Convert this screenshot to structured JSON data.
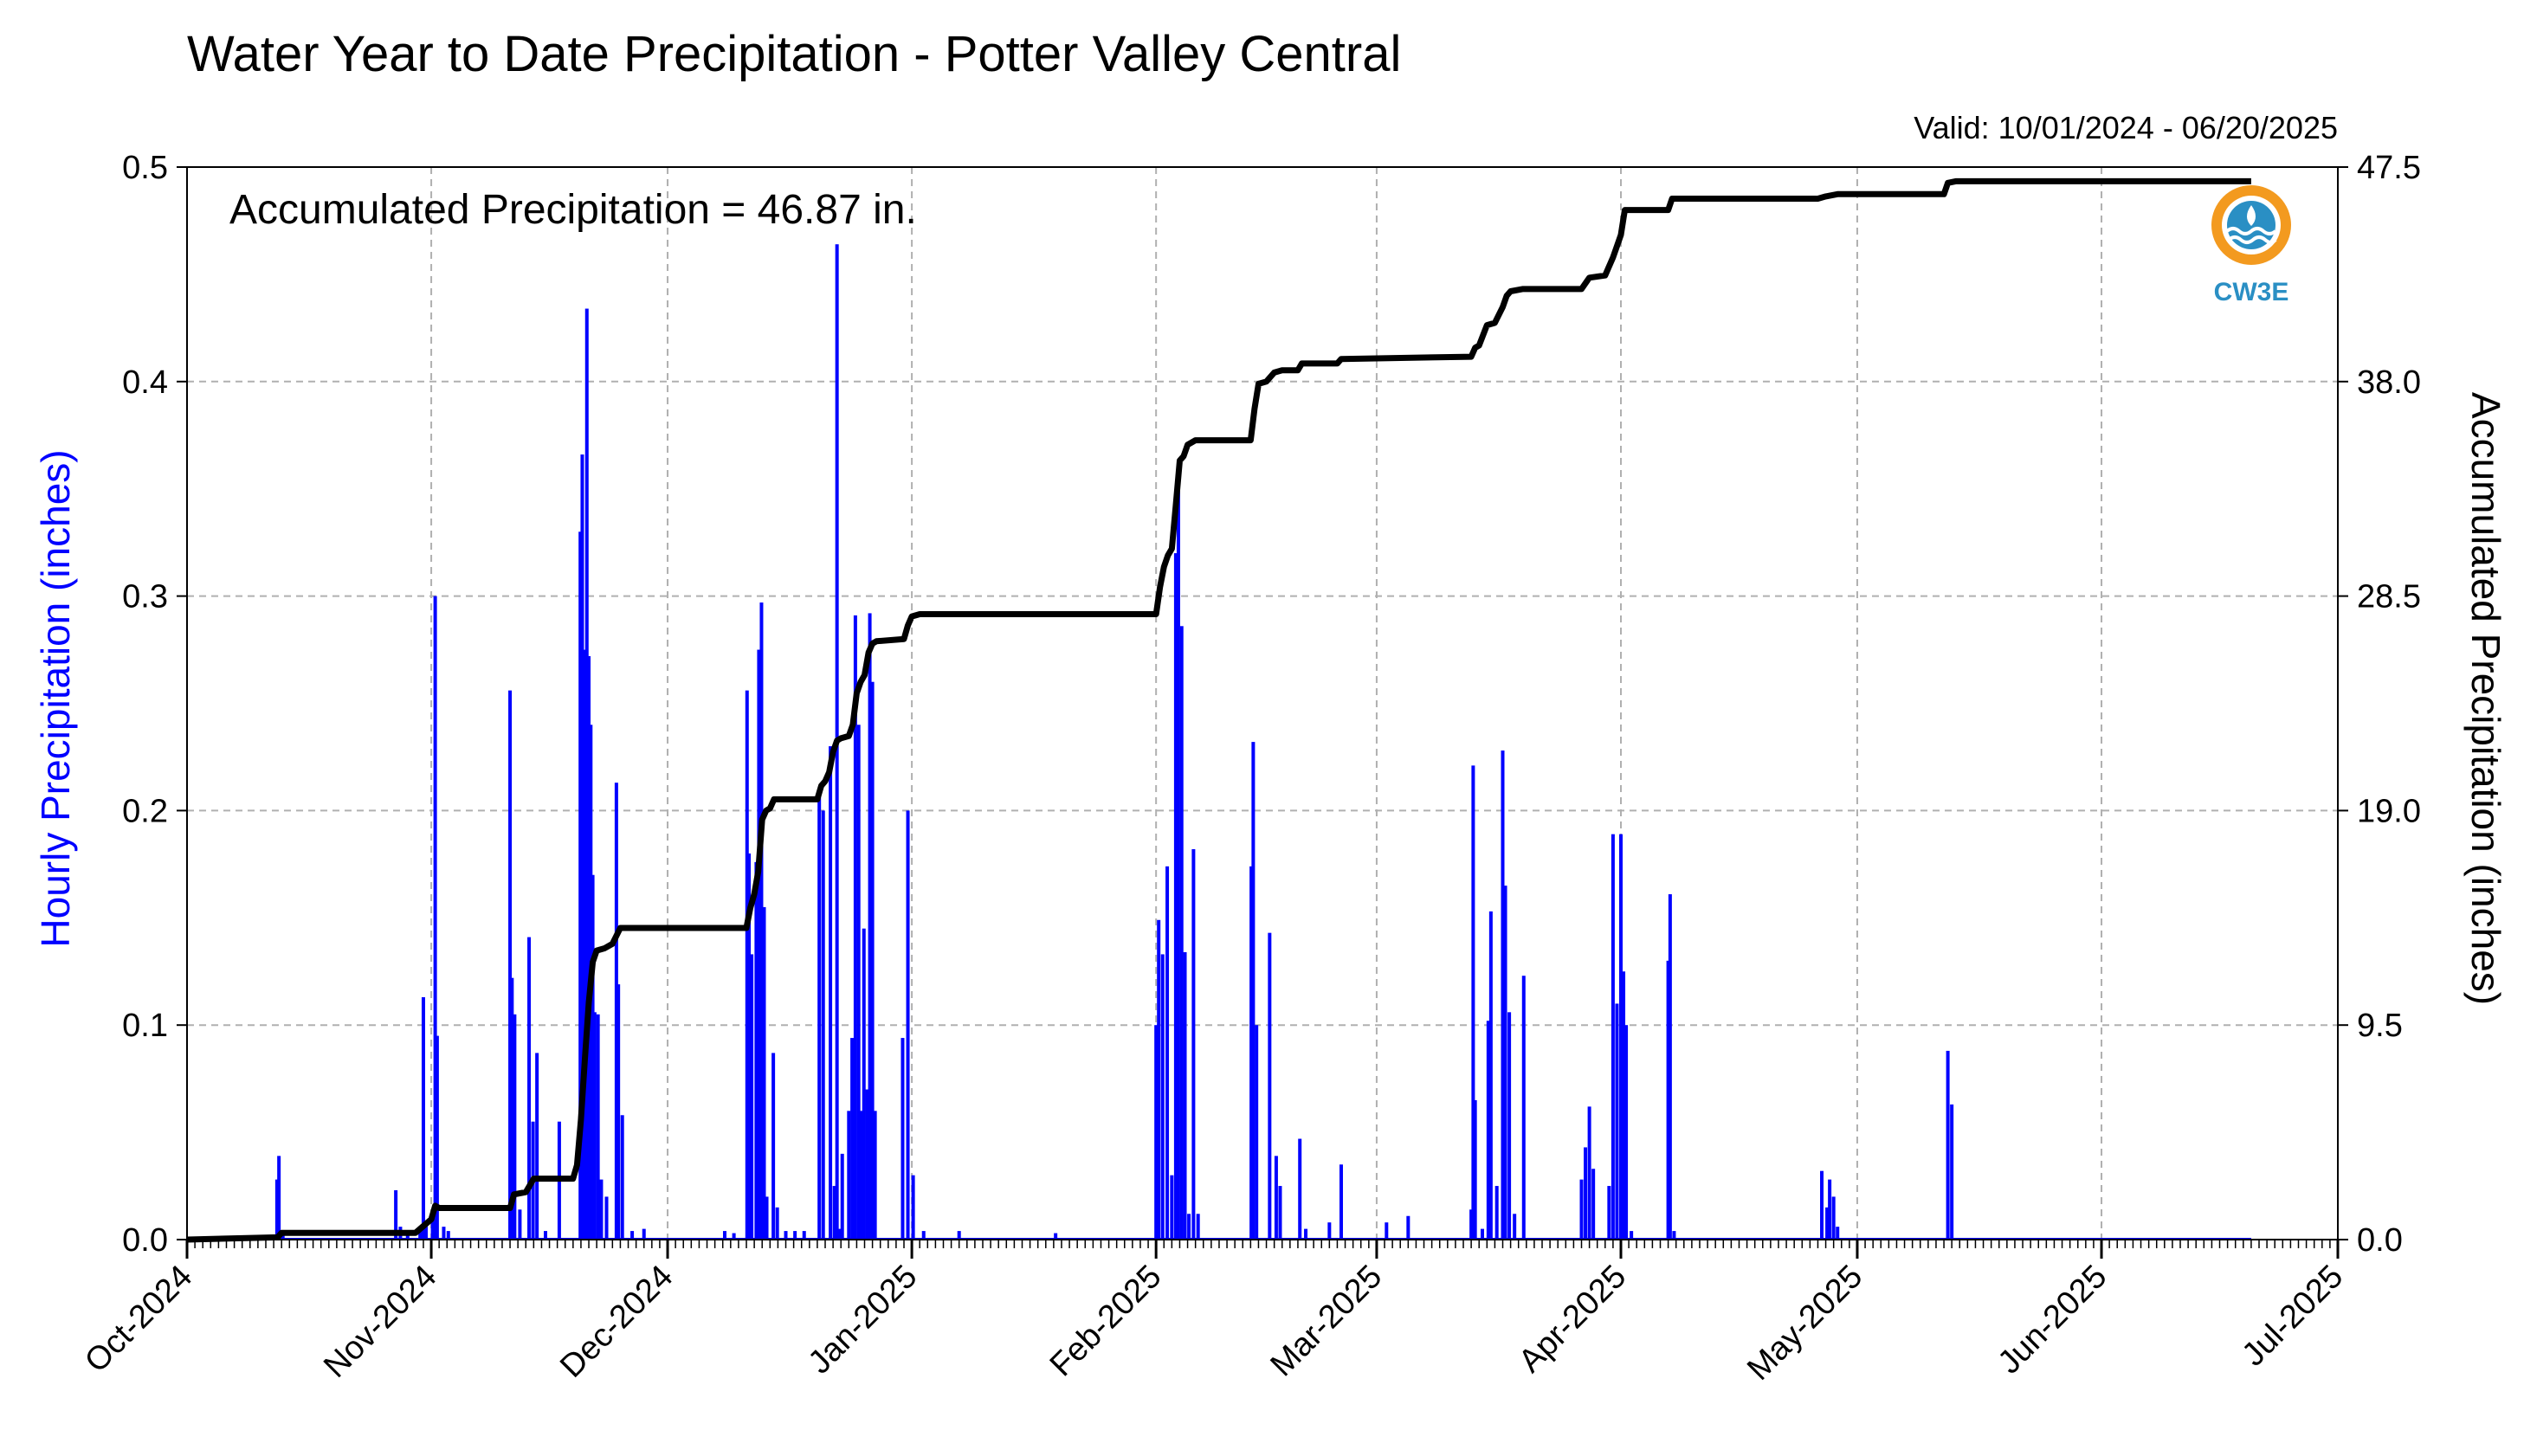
{
  "chart_data": {
    "type": "bar",
    "title": "Water Year to Date Precipitation - Potter Valley Central",
    "valid_range": "Valid: 10/01/2024 - 06/20/2025",
    "annotation": "Accumulated Precipitation = 46.87 in.",
    "ylabel_left": "Hourly Precipitation (inches)",
    "ylabel_right": "Accumulated Precipitation (inches)",
    "ylim_left": [
      0,
      0.5
    ],
    "ylim_right": [
      0,
      47.5
    ],
    "yticks_left": [
      "0.0",
      "0.1",
      "0.2",
      "0.3",
      "0.4",
      "0.5"
    ],
    "yticks_right": [
      "0.0",
      "9.5",
      "19.0",
      "28.5",
      "38.0",
      "47.5"
    ],
    "x_range": [
      "2024-10-01",
      "2025-07-01"
    ],
    "x_ticks": [
      {
        "date": "2024-10-01",
        "label": "Oct-2024"
      },
      {
        "date": "2024-11-01",
        "label": "Nov-2024"
      },
      {
        "date": "2024-12-01",
        "label": "Dec-2024"
      },
      {
        "date": "2025-01-01",
        "label": "Jan-2025"
      },
      {
        "date": "2025-02-01",
        "label": "Feb-2025"
      },
      {
        "date": "2025-03-01",
        "label": "Mar-2025"
      },
      {
        "date": "2025-04-01",
        "label": "Apr-2025"
      },
      {
        "date": "2025-05-01",
        "label": "May-2025"
      },
      {
        "date": "2025-06-01",
        "label": "Jun-2025"
      },
      {
        "date": "2025-07-01",
        "label": "Jul-2025"
      }
    ],
    "grid": true,
    "colors": {
      "hourly": "#0000ff",
      "accumulated": "#000000",
      "grid": "#b0b0b0"
    },
    "series": [
      {
        "name": "Hourly Precipitation (inches)",
        "axis": "left",
        "type": "bar",
        "points": [
          [
            "2024-10-12T10:00",
            0.028
          ],
          [
            "2024-10-12T16:00",
            0.039
          ],
          [
            "2024-10-13T04:00",
            0.004
          ],
          [
            "2024-10-27T12:00",
            0.023
          ],
          [
            "2024-10-28T02:00",
            0.006
          ],
          [
            "2024-10-29T00:00",
            0.004
          ],
          [
            "2024-10-30T14:00",
            0.004
          ],
          [
            "2024-10-31T00:00",
            0.113
          ],
          [
            "2024-10-31T08:00",
            0.008
          ],
          [
            "2024-11-01T04:00",
            0.012
          ],
          [
            "2024-11-01T12:00",
            0.3
          ],
          [
            "2024-11-01T18:00",
            0.095
          ],
          [
            "2024-11-02T14:00",
            0.006
          ],
          [
            "2024-11-03T04:00",
            0.004
          ],
          [
            "2024-11-11T00:00",
            0.256
          ],
          [
            "2024-11-11T06:00",
            0.122
          ],
          [
            "2024-11-11T14:00",
            0.105
          ],
          [
            "2024-11-12T06:00",
            0.014
          ],
          [
            "2024-11-13T10:00",
            0.141
          ],
          [
            "2024-11-13T22:00",
            0.055
          ],
          [
            "2024-11-14T10:00",
            0.087
          ],
          [
            "2024-11-15T12:00",
            0.004
          ],
          [
            "2024-11-17T06:00",
            0.055
          ],
          [
            "2024-11-19T12:00",
            0.0
          ],
          [
            "2024-11-19T22:00",
            0.33
          ],
          [
            "2024-11-20T04:00",
            0.366
          ],
          [
            "2024-11-20T12:00",
            0.275
          ],
          [
            "2024-11-20T18:00",
            0.434
          ],
          [
            "2024-11-21T00:00",
            0.272
          ],
          [
            "2024-11-21T06:00",
            0.24
          ],
          [
            "2024-11-21T12:00",
            0.17
          ],
          [
            "2024-11-21T18:00",
            0.106
          ],
          [
            "2024-11-22T04:00",
            0.105
          ],
          [
            "2024-11-22T14:00",
            0.028
          ],
          [
            "2024-11-23T06:00",
            0.02
          ],
          [
            "2024-11-24T12:00",
            0.213
          ],
          [
            "2024-11-24T18:00",
            0.119
          ],
          [
            "2024-11-25T06:00",
            0.058
          ],
          [
            "2024-11-26T12:00",
            0.004
          ],
          [
            "2024-11-28T00:00",
            0.005
          ],
          [
            "2024-12-08T06:00",
            0.004
          ],
          [
            "2024-12-09T10:00",
            0.003
          ],
          [
            "2024-12-11T02:00",
            0.256
          ],
          [
            "2024-12-11T08:00",
            0.18
          ],
          [
            "2024-12-11T16:00",
            0.133
          ],
          [
            "2024-12-12T06:00",
            0.176
          ],
          [
            "2024-12-12T14:00",
            0.275
          ],
          [
            "2024-12-12T22:00",
            0.297
          ],
          [
            "2024-12-13T06:00",
            0.155
          ],
          [
            "2024-12-13T14:00",
            0.02
          ],
          [
            "2024-12-14T10:00",
            0.087
          ],
          [
            "2024-12-14T22:00",
            0.015
          ],
          [
            "2024-12-16T00:00",
            0.004
          ],
          [
            "2024-12-17T04:00",
            0.004
          ],
          [
            "2024-12-18T08:00",
            0.004
          ],
          [
            "2024-12-20T06:00",
            0.208
          ],
          [
            "2024-12-20T18:00",
            0.2
          ],
          [
            "2024-12-21T16:00",
            0.23
          ],
          [
            "2024-12-22T04:00",
            0.025
          ],
          [
            "2024-12-22T12:00",
            0.464
          ],
          [
            "2024-12-22T20:00",
            0.005
          ],
          [
            "2024-12-23T04:00",
            0.04
          ],
          [
            "2024-12-24T00:00",
            0.06
          ],
          [
            "2024-12-24T10:00",
            0.094
          ],
          [
            "2024-12-24T20:00",
            0.291
          ],
          [
            "2024-12-25T06:00",
            0.24
          ],
          [
            "2024-12-25T14:00",
            0.06
          ],
          [
            "2024-12-25T22:00",
            0.145
          ],
          [
            "2024-12-26T08:00",
            0.07
          ],
          [
            "2024-12-26T16:00",
            0.292
          ],
          [
            "2024-12-27T00:00",
            0.26
          ],
          [
            "2024-12-27T08:00",
            0.06
          ],
          [
            "2024-12-30T20:00",
            0.094
          ],
          [
            "2024-12-31T12:00",
            0.2
          ],
          [
            "2025-01-01T04:00",
            0.03
          ],
          [
            "2025-01-02T12:00",
            0.004
          ],
          [
            "2025-01-07T00:00",
            0.004
          ],
          [
            "2025-01-19T06:00",
            0.003
          ],
          [
            "2025-02-01T00:00",
            0.1
          ],
          [
            "2025-02-01T08:00",
            0.149
          ],
          [
            "2025-02-01T20:00",
            0.133
          ],
          [
            "2025-02-02T10:00",
            0.174
          ],
          [
            "2025-02-03T00:00",
            0.03
          ],
          [
            "2025-02-03T12:00",
            0.32
          ],
          [
            "2025-02-03T20:00",
            0.35
          ],
          [
            "2025-02-04T06:00",
            0.286
          ],
          [
            "2025-02-04T16:00",
            0.134
          ],
          [
            "2025-02-05T04:00",
            0.012
          ],
          [
            "2025-02-05T18:00",
            0.182
          ],
          [
            "2025-02-06T08:00",
            0.012
          ],
          [
            "2025-02-13T02:00",
            0.174
          ],
          [
            "2025-02-13T08:00",
            0.232
          ],
          [
            "2025-02-13T18:00",
            0.1
          ],
          [
            "2025-02-15T10:00",
            0.143
          ],
          [
            "2025-02-16T06:00",
            0.039
          ],
          [
            "2025-02-16T18:00",
            0.025
          ],
          [
            "2025-02-19T06:00",
            0.047
          ],
          [
            "2025-02-20T00:00",
            0.005
          ],
          [
            "2025-02-23T00:00",
            0.008
          ],
          [
            "2025-02-24T12:00",
            0.035
          ],
          [
            "2025-03-02T06:00",
            0.008
          ],
          [
            "2025-03-05T00:00",
            0.011
          ],
          [
            "2025-03-13T00:00",
            0.014
          ],
          [
            "2025-03-13T06:00",
            0.221
          ],
          [
            "2025-03-13T12:00",
            0.065
          ],
          [
            "2025-03-14T10:00",
            0.005
          ],
          [
            "2025-03-15T04:00",
            0.102
          ],
          [
            "2025-03-15T12:00",
            0.153
          ],
          [
            "2025-03-16T06:00",
            0.025
          ],
          [
            "2025-03-17T00:00",
            0.228
          ],
          [
            "2025-03-17T08:00",
            0.165
          ],
          [
            "2025-03-17T20:00",
            0.106
          ],
          [
            "2025-03-18T12:00",
            0.012
          ],
          [
            "2025-03-19T16:00",
            0.123
          ],
          [
            "2025-03-27T00:00",
            0.028
          ],
          [
            "2025-03-27T12:00",
            0.043
          ],
          [
            "2025-03-28T00:00",
            0.062
          ],
          [
            "2025-03-28T12:00",
            0.033
          ],
          [
            "2025-03-30T12:00",
            0.025
          ],
          [
            "2025-03-31T00:00",
            0.189
          ],
          [
            "2025-03-31T12:00",
            0.11
          ],
          [
            "2025-04-01T00:00",
            0.189
          ],
          [
            "2025-04-01T08:00",
            0.125
          ],
          [
            "2025-04-01T16:00",
            0.1
          ],
          [
            "2025-04-02T08:00",
            0.004
          ],
          [
            "2025-04-07T00:00",
            0.13
          ],
          [
            "2025-04-07T06:00",
            0.161
          ],
          [
            "2025-04-07T18:00",
            0.004
          ],
          [
            "2025-04-26T12:00",
            0.032
          ],
          [
            "2025-04-27T04:00",
            0.015
          ],
          [
            "2025-04-27T12:00",
            0.028
          ],
          [
            "2025-04-28T00:00",
            0.02
          ],
          [
            "2025-04-28T12:00",
            0.006
          ],
          [
            "2025-05-12T12:00",
            0.088
          ],
          [
            "2025-05-13T00:00",
            0.063
          ]
        ]
      },
      {
        "name": "Accumulated Precipitation (inches)",
        "axis": "right",
        "type": "line",
        "points": [
          [
            "2024-10-01T00:00",
            0.0
          ],
          [
            "2024-10-12T12:00",
            0.1
          ],
          [
            "2024-10-13T00:00",
            0.3
          ],
          [
            "2024-10-30T00:00",
            0.3
          ],
          [
            "2024-10-31T00:00",
            0.6
          ],
          [
            "2024-11-01T00:00",
            0.9
          ],
          [
            "2024-11-01T12:00",
            1.5
          ],
          [
            "2024-11-02T00:00",
            1.4
          ],
          [
            "2024-11-11T00:00",
            1.4
          ],
          [
            "2024-11-11T12:00",
            2.0
          ],
          [
            "2024-11-13T00:00",
            2.1
          ],
          [
            "2024-11-14T00:00",
            2.7
          ],
          [
            "2024-11-19T00:00",
            2.7
          ],
          [
            "2024-11-19T12:00",
            3.3
          ],
          [
            "2024-11-20T00:00",
            5.3
          ],
          [
            "2024-11-20T12:00",
            8.0
          ],
          [
            "2024-11-21T00:00",
            10.5
          ],
          [
            "2024-11-21T12:00",
            12.3
          ],
          [
            "2024-11-22T00:00",
            12.8
          ],
          [
            "2024-11-23T00:00",
            12.9
          ],
          [
            "2024-11-24T00:00",
            13.1
          ],
          [
            "2024-11-25T00:00",
            13.8
          ],
          [
            "2024-11-26T00:00",
            13.8
          ],
          [
            "2024-12-11T00:00",
            13.8
          ],
          [
            "2024-12-11T12:00",
            14.7
          ],
          [
            "2024-12-12T00:00",
            15.3
          ],
          [
            "2024-12-12T12:00",
            16.3
          ],
          [
            "2024-12-13T00:00",
            18.6
          ],
          [
            "2024-12-13T12:00",
            19.0
          ],
          [
            "2024-12-14T00:00",
            19.1
          ],
          [
            "2024-12-14T12:00",
            19.5
          ],
          [
            "2024-12-15T00:00",
            19.5
          ],
          [
            "2024-12-20T00:00",
            19.5
          ],
          [
            "2024-12-20T12:00",
            20.1
          ],
          [
            "2024-12-21T00:00",
            20.3
          ],
          [
            "2024-12-21T12:00",
            20.7
          ],
          [
            "2024-12-22T00:00",
            21.6
          ],
          [
            "2024-12-22T12:00",
            22.1
          ],
          [
            "2024-12-23T00:00",
            22.2
          ],
          [
            "2024-12-24T00:00",
            22.3
          ],
          [
            "2024-12-24T12:00",
            22.8
          ],
          [
            "2024-12-25T00:00",
            24.2
          ],
          [
            "2024-12-25T12:00",
            24.7
          ],
          [
            "2024-12-26T00:00",
            25.0
          ],
          [
            "2024-12-26T12:00",
            26.0
          ],
          [
            "2024-12-27T00:00",
            26.4
          ],
          [
            "2024-12-27T12:00",
            26.5
          ],
          [
            "2024-12-31T00:00",
            26.6
          ],
          [
            "2024-12-31T12:00",
            27.2
          ],
          [
            "2025-01-01T00:00",
            27.6
          ],
          [
            "2025-01-02T00:00",
            27.7
          ],
          [
            "2025-02-01T00:00",
            27.7
          ],
          [
            "2025-02-01T12:00",
            28.9
          ],
          [
            "2025-02-02T00:00",
            29.8
          ],
          [
            "2025-02-02T12:00",
            30.3
          ],
          [
            "2025-02-03T00:00",
            30.6
          ],
          [
            "2025-02-03T12:00",
            32.5
          ],
          [
            "2025-02-04T00:00",
            34.5
          ],
          [
            "2025-02-04T12:00",
            34.7
          ],
          [
            "2025-02-05T00:00",
            35.2
          ],
          [
            "2025-02-06T00:00",
            35.4
          ],
          [
            "2025-02-13T00:00",
            35.4
          ],
          [
            "2025-02-13T12:00",
            36.8
          ],
          [
            "2025-02-14T00:00",
            37.9
          ],
          [
            "2025-02-15T00:00",
            38.0
          ],
          [
            "2025-02-16T00:00",
            38.4
          ],
          [
            "2025-02-17T00:00",
            38.5
          ],
          [
            "2025-02-19T00:00",
            38.5
          ],
          [
            "2025-02-19T12:00",
            38.8
          ],
          [
            "2025-02-24T00:00",
            38.8
          ],
          [
            "2025-02-24T12:00",
            39.0
          ],
          [
            "2025-03-13T00:00",
            39.1
          ],
          [
            "2025-03-13T12:00",
            39.5
          ],
          [
            "2025-03-14T00:00",
            39.6
          ],
          [
            "2025-03-15T00:00",
            40.5
          ],
          [
            "2025-03-16T00:00",
            40.6
          ],
          [
            "2025-03-17T00:00",
            41.3
          ],
          [
            "2025-03-17T12:00",
            41.8
          ],
          [
            "2025-03-18T00:00",
            42.0
          ],
          [
            "2025-03-19T12:00",
            42.1
          ],
          [
            "2025-03-27T00:00",
            42.1
          ],
          [
            "2025-03-28T00:00",
            42.6
          ],
          [
            "2025-03-30T00:00",
            42.7
          ],
          [
            "2025-03-31T00:00",
            43.5
          ],
          [
            "2025-04-01T00:00",
            44.5
          ],
          [
            "2025-04-01T12:00",
            45.6
          ],
          [
            "2025-04-02T00:00",
            45.6
          ],
          [
            "2025-04-07T00:00",
            45.6
          ],
          [
            "2025-04-07T12:00",
            46.1
          ],
          [
            "2025-04-26T00:00",
            46.1
          ],
          [
            "2025-04-27T00:00",
            46.2
          ],
          [
            "2025-04-28T12:00",
            46.3
          ],
          [
            "2025-05-12T00:00",
            46.3
          ],
          [
            "2025-05-12T12:00",
            46.8
          ],
          [
            "2025-05-13T12:00",
            46.87
          ],
          [
            "2025-06-20T00:00",
            46.87
          ]
        ]
      }
    ]
  },
  "logo": {
    "text": "CW3E",
    "ring_color": "#f39a1f",
    "water_color": "#2a8fc4"
  }
}
